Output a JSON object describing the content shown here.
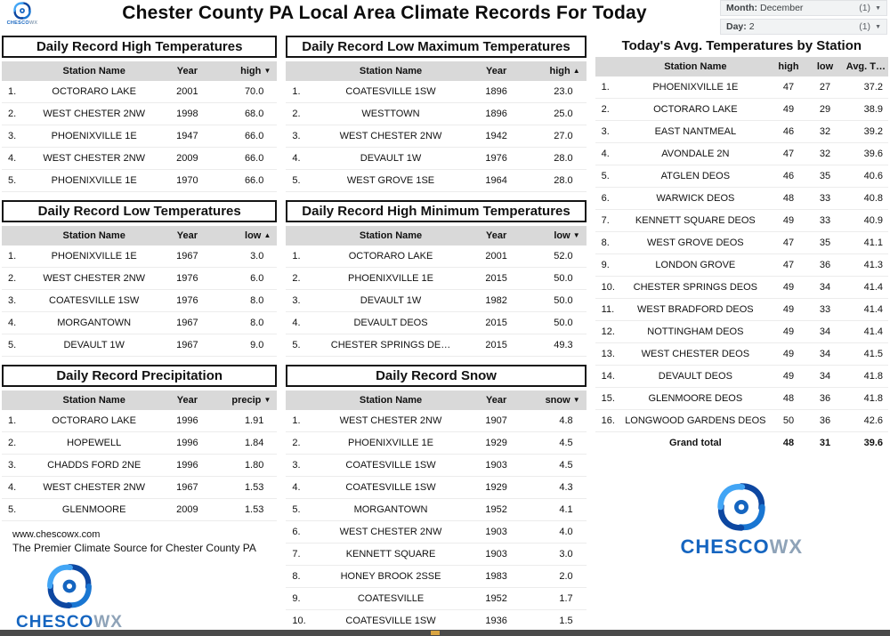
{
  "header": {
    "title": "Chester County PA Local Area Climate Records For Today"
  },
  "filters": {
    "month": {
      "label": "Month:",
      "value": "December",
      "count": "(1)",
      "caret": "▼"
    },
    "day": {
      "label": "Day:",
      "value": "2",
      "count": "(1)",
      "caret": "▼"
    }
  },
  "brand": {
    "part1": "CHESCO",
    "part2": "WX"
  },
  "footer": {
    "website": "www.chescowx.com",
    "tagline": "The Premier Climate Source for Chester County PA"
  },
  "tables": {
    "record_high": {
      "title": "Daily Record High Temperatures",
      "headers": {
        "station": "Station Name",
        "year": "Year",
        "value": "high",
        "sort_arrow": "▼"
      },
      "rows": [
        {
          "rank": "1.",
          "station": "OCTORARO LAKE",
          "year": "2001",
          "value": "70.0"
        },
        {
          "rank": "2.",
          "station": "WEST CHESTER 2NW",
          "year": "1998",
          "value": "68.0"
        },
        {
          "rank": "3.",
          "station": "PHOENIXVILLE 1E",
          "year": "1947",
          "value": "66.0"
        },
        {
          "rank": "4.",
          "station": "WEST CHESTER 2NW",
          "year": "2009",
          "value": "66.0"
        },
        {
          "rank": "5.",
          "station": "PHOENIXVILLE 1E",
          "year": "1970",
          "value": "66.0"
        }
      ]
    },
    "record_low_max": {
      "title": "Daily Record Low Maximum Temperatures",
      "headers": {
        "station": "Station Name",
        "year": "Year",
        "value": "high",
        "sort_arrow": "▲"
      },
      "rows": [
        {
          "rank": "1.",
          "station": "COATESVILLE 1SW",
          "year": "1896",
          "value": "23.0"
        },
        {
          "rank": "2.",
          "station": "WESTTOWN",
          "year": "1896",
          "value": "25.0"
        },
        {
          "rank": "3.",
          "station": "WEST CHESTER 2NW",
          "year": "1942",
          "value": "27.0"
        },
        {
          "rank": "4.",
          "station": "DEVAULT 1W",
          "year": "1976",
          "value": "28.0"
        },
        {
          "rank": "5.",
          "station": "WEST GROVE 1SE",
          "year": "1964",
          "value": "28.0"
        }
      ]
    },
    "record_low": {
      "title": "Daily Record Low Temperatures",
      "headers": {
        "station": "Station Name",
        "year": "Year",
        "value": "low",
        "sort_arrow": "▲"
      },
      "rows": [
        {
          "rank": "1.",
          "station": "PHOENIXVILLE 1E",
          "year": "1967",
          "value": "3.0"
        },
        {
          "rank": "2.",
          "station": "WEST CHESTER 2NW",
          "year": "1976",
          "value": "6.0"
        },
        {
          "rank": "3.",
          "station": "COATESVILLE 1SW",
          "year": "1976",
          "value": "8.0"
        },
        {
          "rank": "4.",
          "station": "MORGANTOWN",
          "year": "1967",
          "value": "8.0"
        },
        {
          "rank": "5.",
          "station": "DEVAULT 1W",
          "year": "1967",
          "value": "9.0"
        }
      ]
    },
    "record_high_min": {
      "title": "Daily Record High Minimum Temperatures",
      "headers": {
        "station": "Station Name",
        "year": "Year",
        "value": "low",
        "sort_arrow": "▼"
      },
      "rows": [
        {
          "rank": "1.",
          "station": "OCTORARO LAKE",
          "year": "2001",
          "value": "52.0"
        },
        {
          "rank": "2.",
          "station": "PHOENIXVILLE 1E",
          "year": "2015",
          "value": "50.0"
        },
        {
          "rank": "3.",
          "station": "DEVAULT 1W",
          "year": "1982",
          "value": "50.0"
        },
        {
          "rank": "4.",
          "station": "DEVAULT DEOS",
          "year": "2015",
          "value": "50.0"
        },
        {
          "rank": "5.",
          "station": "CHESTER SPRINGS DE…",
          "year": "2015",
          "value": "49.3"
        }
      ]
    },
    "record_precip": {
      "title": "Daily Record Precipitation",
      "headers": {
        "station": "Station Name",
        "year": "Year",
        "value": "precip",
        "sort_arrow": "▼"
      },
      "rows": [
        {
          "rank": "1.",
          "station": "OCTORARO LAKE",
          "year": "1996",
          "value": "1.91"
        },
        {
          "rank": "2.",
          "station": "HOPEWELL",
          "year": "1996",
          "value": "1.84"
        },
        {
          "rank": "3.",
          "station": "CHADDS FORD 2NE",
          "year": "1996",
          "value": "1.80"
        },
        {
          "rank": "4.",
          "station": "WEST CHESTER 2NW",
          "year": "1967",
          "value": "1.53"
        },
        {
          "rank": "5.",
          "station": "GLENMOORE",
          "year": "2009",
          "value": "1.53"
        }
      ]
    },
    "record_snow": {
      "title": "Daily Record Snow",
      "headers": {
        "station": "Station Name",
        "year": "Year",
        "value": "snow",
        "sort_arrow": "▼"
      },
      "rows": [
        {
          "rank": "1.",
          "station": "WEST CHESTER 2NW",
          "year": "1907",
          "value": "4.8"
        },
        {
          "rank": "2.",
          "station": "PHOENIXVILLE 1E",
          "year": "1929",
          "value": "4.5"
        },
        {
          "rank": "3.",
          "station": "COATESVILLE 1SW",
          "year": "1903",
          "value": "4.5"
        },
        {
          "rank": "4.",
          "station": "COATESVILLE 1SW",
          "year": "1929",
          "value": "4.3"
        },
        {
          "rank": "5.",
          "station": "MORGANTOWN",
          "year": "1952",
          "value": "4.1"
        },
        {
          "rank": "6.",
          "station": "WEST CHESTER 2NW",
          "year": "1903",
          "value": "4.0"
        },
        {
          "rank": "7.",
          "station": "KENNETT SQUARE",
          "year": "1903",
          "value": "3.0"
        },
        {
          "rank": "8.",
          "station": "HONEY BROOK 2SSE",
          "year": "1983",
          "value": "2.0"
        },
        {
          "rank": "9.",
          "station": "COATESVILLE",
          "year": "1952",
          "value": "1.7"
        },
        {
          "rank": "10.",
          "station": "COATESVILLE 1SW",
          "year": "1936",
          "value": "1.5"
        }
      ]
    },
    "avg_today": {
      "title": "Today's Avg. Temperatures by Station",
      "headers": {
        "station": "Station Name",
        "high": "high",
        "low": "low",
        "avg": "Avg. T…"
      },
      "rows": [
        {
          "rank": "1.",
          "station": "PHOENIXVILLE 1E",
          "high": "47",
          "low": "27",
          "avg": "37.2"
        },
        {
          "rank": "2.",
          "station": "OCTORARO LAKE",
          "high": "49",
          "low": "29",
          "avg": "38.9"
        },
        {
          "rank": "3.",
          "station": "EAST NANTMEAL",
          "high": "46",
          "low": "32",
          "avg": "39.2"
        },
        {
          "rank": "4.",
          "station": "AVONDALE 2N",
          "high": "47",
          "low": "32",
          "avg": "39.6"
        },
        {
          "rank": "5.",
          "station": "ATGLEN DEOS",
          "high": "46",
          "low": "35",
          "avg": "40.6"
        },
        {
          "rank": "6.",
          "station": "WARWICK DEOS",
          "high": "48",
          "low": "33",
          "avg": "40.8"
        },
        {
          "rank": "7.",
          "station": "KENNETT SQUARE DEOS",
          "high": "49",
          "low": "33",
          "avg": "40.9"
        },
        {
          "rank": "8.",
          "station": "WEST GROVE DEOS",
          "high": "47",
          "low": "35",
          "avg": "41.1"
        },
        {
          "rank": "9.",
          "station": "LONDON GROVE",
          "high": "47",
          "low": "36",
          "avg": "41.3"
        },
        {
          "rank": "10.",
          "station": "CHESTER SPRINGS DEOS",
          "high": "49",
          "low": "34",
          "avg": "41.4"
        },
        {
          "rank": "11.",
          "station": "WEST BRADFORD DEOS",
          "high": "49",
          "low": "33",
          "avg": "41.4"
        },
        {
          "rank": "12.",
          "station": "NOTTINGHAM DEOS",
          "high": "49",
          "low": "34",
          "avg": "41.4"
        },
        {
          "rank": "13.",
          "station": "WEST CHESTER DEOS",
          "high": "49",
          "low": "34",
          "avg": "41.5"
        },
        {
          "rank": "14.",
          "station": "DEVAULT DEOS",
          "high": "49",
          "low": "34",
          "avg": "41.8"
        },
        {
          "rank": "15.",
          "station": "GLENMOORE DEOS",
          "high": "48",
          "low": "36",
          "avg": "41.8"
        },
        {
          "rank": "16.",
          "station": "LONGWOOD GARDENS DEOS",
          "high": "50",
          "low": "36",
          "avg": "42.6"
        }
      ],
      "grand_total": {
        "label": "Grand total",
        "high": "48",
        "low": "31",
        "avg": "39.6"
      }
    }
  }
}
